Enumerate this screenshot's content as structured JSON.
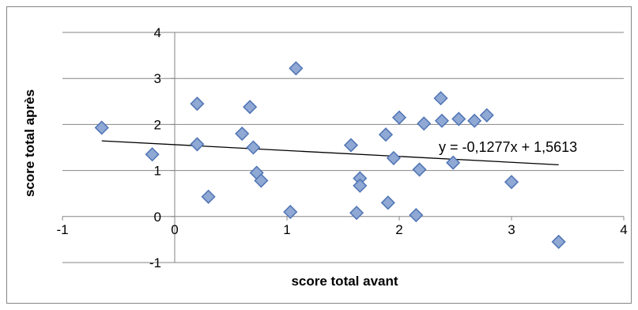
{
  "chart_data": {
    "type": "scatter",
    "title": "",
    "xlabel": "score total avant",
    "ylabel": "score total après",
    "xlim": [
      -1,
      4
    ],
    "ylim": [
      -1,
      4
    ],
    "xticks": [
      -1,
      0,
      1,
      2,
      3,
      4
    ],
    "yticks": [
      -1,
      0,
      1,
      2,
      3,
      4
    ],
    "x_tick_labels": [
      "-1",
      "0",
      "1",
      "2",
      "3",
      "4"
    ],
    "y_tick_labels": [
      "-1",
      "0",
      "1",
      "2",
      "3",
      "4"
    ],
    "grid": "horizontal",
    "marker": "diamond",
    "marker_color": "#8FA8D4",
    "marker_edge_color": "#4F74B4",
    "points": [
      [
        -0.65,
        1.93
      ],
      [
        -0.2,
        1.35
      ],
      [
        0.2,
        2.45
      ],
      [
        0.2,
        1.57
      ],
      [
        0.3,
        0.43
      ],
      [
        0.6,
        1.8
      ],
      [
        0.67,
        2.38
      ],
      [
        0.7,
        1.5
      ],
      [
        0.73,
        0.95
      ],
      [
        0.77,
        0.78
      ],
      [
        1.03,
        0.1
      ],
      [
        1.08,
        3.22
      ],
      [
        1.57,
        1.55
      ],
      [
        1.62,
        0.08
      ],
      [
        1.65,
        0.83
      ],
      [
        1.65,
        0.67
      ],
      [
        1.88,
        1.78
      ],
      [
        1.9,
        0.3
      ],
      [
        1.95,
        1.27
      ],
      [
        2.0,
        2.15
      ],
      [
        2.15,
        0.03
      ],
      [
        2.18,
        1.02
      ],
      [
        2.22,
        2.02
      ],
      [
        2.37,
        2.57
      ],
      [
        2.38,
        2.08
      ],
      [
        2.48,
        1.17
      ],
      [
        2.53,
        2.12
      ],
      [
        2.67,
        2.08
      ],
      [
        2.78,
        2.2
      ],
      [
        3.0,
        0.75
      ],
      [
        3.42,
        -0.55
      ]
    ],
    "trendline": {
      "type": "linear",
      "slope": -0.1277,
      "intercept": 1.5613,
      "x_range": [
        -0.65,
        3.42
      ],
      "equation_label": "y = -0,1277x + 1,5613"
    }
  }
}
